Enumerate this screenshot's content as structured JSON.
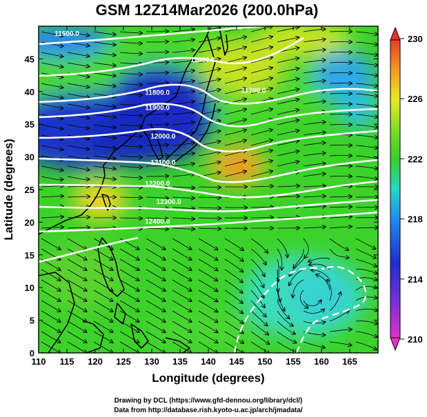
{
  "title": "GSM 12Z14Mar2026 (200.0hPa)",
  "xlabel": "Longitude (degrees)",
  "ylabel": "Latitude  (degrees)",
  "footer": {
    "line1": "Drawing by DCL (https://www.gfd-dennou.org/library/dcl/)",
    "line2": "Data from http://database.rish.kyoto-u.ac.jp/arch/jmadata/"
  },
  "colorbar": {
    "ticks": [
      "230",
      "226",
      "222",
      "218",
      "214",
      "210"
    ],
    "range": [
      210,
      230
    ]
  },
  "chart_data": {
    "type": "heatmap",
    "variable": "temperature (K) with wind streamlines and geopotential height contours",
    "level": "200.0hPa",
    "xlim": [
      110,
      170
    ],
    "ylim": [
      0,
      50
    ],
    "x_ticks": [
      "110",
      "115",
      "120",
      "125",
      "130",
      "135",
      "140",
      "145",
      "150",
      "155",
      "160",
      "165"
    ],
    "y_ticks": [
      "0",
      "5",
      "10",
      "15",
      "20",
      "25",
      "30",
      "35",
      "40",
      "45"
    ],
    "contours": [
      {
        "label": "11500.0",
        "lon": 115,
        "lat": 48.5
      },
      {
        "label": "11600.0",
        "lon": 139,
        "lat": 44.5
      },
      {
        "label": "11700.0",
        "lon": 148,
        "lat": 39.8
      },
      {
        "label": "11800.0",
        "lon": 131,
        "lat": 39.5
      },
      {
        "label": "11900.0",
        "lon": 131,
        "lat": 37.2
      },
      {
        "label": "12000.0",
        "lon": 132,
        "lat": 32.8
      },
      {
        "label": "12100.0",
        "lon": 132,
        "lat": 28.8
      },
      {
        "label": "12200.0",
        "lon": 131,
        "lat": 25.6
      },
      {
        "label": "12300.0",
        "lon": 133,
        "lat": 22.8
      },
      {
        "label": "12400.0",
        "lon": 131,
        "lat": 19.8
      }
    ],
    "temperature_features": [
      {
        "name": "cold core",
        "lon": 127,
        "lat": 37,
        "value": 213
      },
      {
        "name": "cold band west",
        "lon": 113,
        "lat": 36,
        "value": 214
      },
      {
        "name": "warm spot",
        "lon": 145,
        "lat": 31,
        "value": 227
      },
      {
        "name": "warm spot",
        "lon": 120,
        "lat": 26,
        "value": 225
      },
      {
        "name": "warm region",
        "lon": 148,
        "lat": 46,
        "value": 224
      },
      {
        "name": "cool region",
        "lon": 162,
        "lat": 40,
        "value": 218
      },
      {
        "name": "cool pool",
        "lon": 157,
        "lat": 10,
        "value": 219
      }
    ]
  }
}
